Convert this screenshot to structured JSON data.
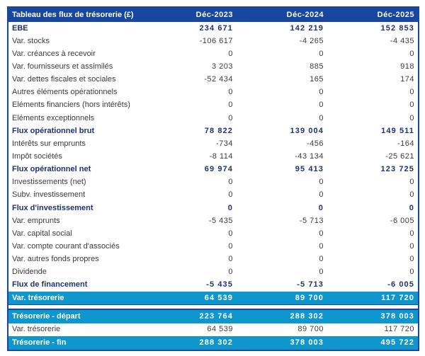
{
  "table": {
    "title": "Tableau des flux de trésorerie (£)",
    "columns": [
      "Déc-2023",
      "Déc-2024",
      "Déc-2025"
    ],
    "rows": [
      {
        "label": "EBE",
        "values": [
          "234 671",
          "142 219",
          "152 853"
        ],
        "style": "bold"
      },
      {
        "label": "Var. stocks",
        "values": [
          "-106 617",
          "-4 265",
          "-4 435"
        ],
        "style": "normal"
      },
      {
        "label": "Var. créances à recevoir",
        "values": [
          "0",
          "0",
          "0"
        ],
        "style": "normal"
      },
      {
        "label": "Var. fournisseurs et assimilés",
        "values": [
          "3 203",
          "885",
          "918"
        ],
        "style": "normal"
      },
      {
        "label": "Var. dettes fiscales et sociales",
        "values": [
          "-52 434",
          "165",
          "174"
        ],
        "style": "normal"
      },
      {
        "label": "Autres éléments opérationnels",
        "values": [
          "0",
          "0",
          "0"
        ],
        "style": "normal"
      },
      {
        "label": "Eléments financiers (hors intérêts)",
        "values": [
          "0",
          "0",
          "0"
        ],
        "style": "normal"
      },
      {
        "label": "Eléments exceptionnels",
        "values": [
          "0",
          "0",
          "0"
        ],
        "style": "normal"
      },
      {
        "label": "Flux opérationnel brut",
        "values": [
          "78 822",
          "139 004",
          "149 511"
        ],
        "style": "bold"
      },
      {
        "label": "Intérêts sur emprunts",
        "values": [
          "-734",
          "-456",
          "-164"
        ],
        "style": "normal"
      },
      {
        "label": "Impôt sociétés",
        "values": [
          "-8 114",
          "-43 134",
          "-25 621"
        ],
        "style": "normal"
      },
      {
        "label": "Flux opérationnel net",
        "values": [
          "69 974",
          "95 413",
          "123 725"
        ],
        "style": "bold"
      },
      {
        "label": "Investissements (net)",
        "values": [
          "0",
          "0",
          "0"
        ],
        "style": "normal"
      },
      {
        "label": "Subv. investissement",
        "values": [
          "0",
          "0",
          "0"
        ],
        "style": "normal"
      },
      {
        "label": "Flux d'investissement",
        "values": [
          "0",
          "0",
          "0"
        ],
        "style": "bold"
      },
      {
        "label": "Var. emprunts",
        "values": [
          "-5 435",
          "-5 713",
          "-6 005"
        ],
        "style": "normal"
      },
      {
        "label": "Var. capital social",
        "values": [
          "0",
          "0",
          "0"
        ],
        "style": "normal"
      },
      {
        "label": "Var. compte courant d'associés",
        "values": [
          "0",
          "0",
          "0"
        ],
        "style": "normal"
      },
      {
        "label": "Var. autres fonds propres",
        "values": [
          "0",
          "0",
          "0"
        ],
        "style": "normal"
      },
      {
        "label": "Dividende",
        "values": [
          "0",
          "0",
          "0"
        ],
        "style": "normal"
      },
      {
        "label": "Flux de financement",
        "values": [
          "-5 435",
          "-5 713",
          "-6 005"
        ],
        "style": "bold"
      },
      {
        "label": "Var. trésorerie",
        "values": [
          "64 539",
          "89 700",
          "117 720"
        ],
        "style": "highlight"
      },
      {
        "label": "",
        "values": [],
        "style": "spacer"
      },
      {
        "label": "Trésorerie - départ",
        "values": [
          "223 764",
          "288 302",
          "378 003"
        ],
        "style": "highlight last3"
      },
      {
        "label": "Var. trésorerie",
        "values": [
          "64 539",
          "89 700",
          "117 720"
        ],
        "style": "normal last3"
      },
      {
        "label": "Trésorerie - fin",
        "values": [
          "288 302",
          "378 003",
          "495 722"
        ],
        "style": "highlight last3"
      }
    ],
    "colors": {
      "header_bg": "#17479E",
      "highlight_bg": "#0F96CC",
      "bold_text": "#1E3170",
      "body_text": "#3B3B3B",
      "border": "#17479E"
    }
  }
}
